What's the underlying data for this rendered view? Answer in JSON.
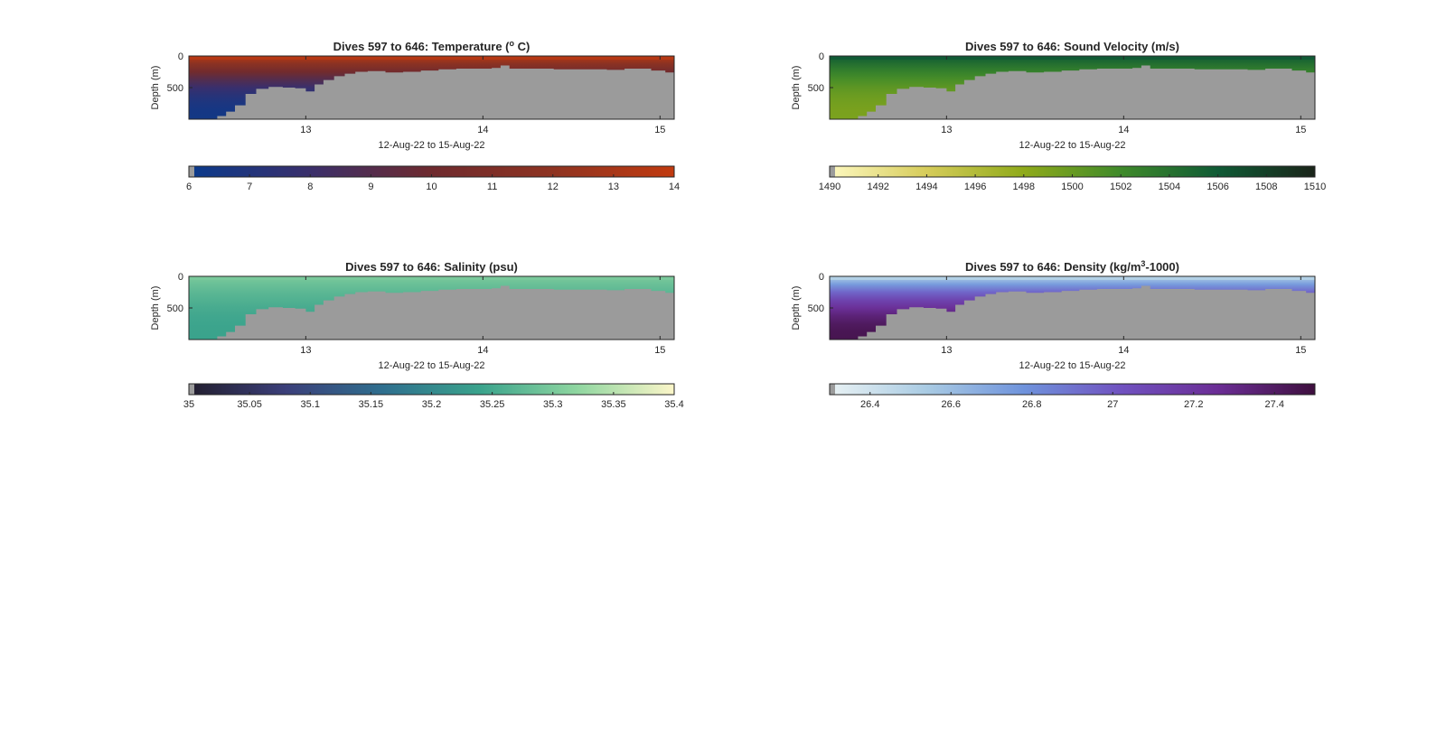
{
  "chart_data": [
    {
      "id": "temperature",
      "type": "heatmap",
      "title": "Dives 597 to 646: Temperature (",
      "title_sup": "o",
      "title_tail": " C)",
      "xlabel": "12-Aug-22 to 15-Aug-22",
      "ylabel": "Depth (m)",
      "xlim": [
        12.34,
        15.08
      ],
      "ylim": [
        0,
        1000
      ],
      "y_reversed": true,
      "xticks": [
        13,
        14,
        15
      ],
      "xtick_labels": [
        "13",
        "14",
        "15"
      ],
      "yticks": [
        0,
        500
      ],
      "ytick_labels": [
        "0",
        "500"
      ],
      "colormap": [
        "#0a3a8c",
        "#3a2f6b",
        "#6e2a2e",
        "#8e3321",
        "#c13a0f"
      ],
      "colorbar": {
        "ticks": [
          6,
          7,
          8,
          9,
          10,
          11,
          12,
          13,
          14
        ],
        "tick_labels": [
          "6",
          "7",
          "8",
          "9",
          "10",
          "11",
          "12",
          "13",
          "14"
        ],
        "range": [
          6,
          14
        ]
      },
      "surface_value": 13.6,
      "deep_value": 6.4
    },
    {
      "id": "sound-velocity",
      "type": "heatmap",
      "title": "Dives 597 to 646: Sound Velocity (m/s)",
      "title_sup": "",
      "title_tail": "",
      "xlabel": "12-Aug-22 to 15-Aug-22",
      "ylabel": "Depth (m)",
      "xlim": [
        12.34,
        15.08
      ],
      "ylim": [
        0,
        1000
      ],
      "y_reversed": true,
      "xticks": [
        13,
        14,
        15
      ],
      "xtick_labels": [
        "13",
        "14",
        "15"
      ],
      "yticks": [
        0,
        500
      ],
      "ytick_labels": [
        "0",
        "500"
      ],
      "colormap": [
        "#fdf8c0",
        "#d6cc5a",
        "#8faa1a",
        "#3f8a2a",
        "#0f5a35",
        "#1a2419"
      ],
      "colorbar": {
        "ticks": [
          1490,
          1492,
          1494,
          1496,
          1498,
          1500,
          1502,
          1504,
          1506,
          1508,
          1510
        ],
        "tick_labels": [
          "1490",
          "1492",
          "1494",
          "1496",
          "1498",
          "1500",
          "1502",
          "1504",
          "1506",
          "1508",
          "1510"
        ],
        "range": [
          1490,
          1510
        ]
      },
      "surface_value": 1506,
      "deep_value": 1499
    },
    {
      "id": "salinity",
      "type": "heatmap",
      "title": "Dives 597 to 646: Salinity (psu)",
      "title_sup": "",
      "title_tail": "",
      "xlabel": "12-Aug-22 to 15-Aug-22",
      "ylabel": "Depth (m)",
      "xlim": [
        12.34,
        15.08
      ],
      "ylim": [
        0,
        1000
      ],
      "y_reversed": true,
      "xticks": [
        13,
        14,
        15
      ],
      "xtick_labels": [
        "13",
        "14",
        "15"
      ],
      "yticks": [
        0,
        500
      ],
      "ytick_labels": [
        "0",
        "500"
      ],
      "colormap": [
        "#221e2e",
        "#3b3f7a",
        "#2f6f8e",
        "#3aa38c",
        "#8fd6a0",
        "#fcf6c9"
      ],
      "colorbar": {
        "ticks": [
          35,
          35.05,
          35.1,
          35.15,
          35.2,
          35.25,
          35.3,
          35.35,
          35.4
        ],
        "tick_labels": [
          "35",
          "35.05",
          "35.1",
          "35.15",
          "35.2",
          "35.25",
          "35.3",
          "35.35",
          "35.4"
        ],
        "range": [
          35,
          35.4
        ]
      },
      "surface_value": 35.3,
      "deep_value": 35.24
    },
    {
      "id": "density",
      "type": "heatmap",
      "title": "Dives 597 to 646: Density (kg/m",
      "title_sup": "3",
      "title_tail": "-1000)",
      "xlabel": "12-Aug-22 to 15-Aug-22",
      "ylabel": "Depth (m)",
      "xlim": [
        12.34,
        15.08
      ],
      "ylim": [
        0,
        1000
      ],
      "y_reversed": true,
      "xticks": [
        13,
        14,
        15
      ],
      "xtick_labels": [
        "13",
        "14",
        "15"
      ],
      "yticks": [
        0,
        500
      ],
      "ytick_labels": [
        "0",
        "500"
      ],
      "colormap": [
        "#e9f2f4",
        "#a9cbe3",
        "#6f93dc",
        "#7052c0",
        "#6b2d95",
        "#3e0f3e"
      ],
      "colorbar": {
        "ticks": [
          26.4,
          26.6,
          26.8,
          27,
          27.2,
          27.4
        ],
        "tick_labels": [
          "26.4",
          "26.6",
          "26.8",
          "27",
          "27.2",
          "27.4"
        ],
        "range": [
          26.3,
          27.5
        ]
      },
      "surface_value": 26.5,
      "deep_value": 27.45
    }
  ],
  "seafloor": {
    "x": [
      12.34,
      12.5,
      12.55,
      12.6,
      12.66,
      12.72,
      12.79,
      12.87,
      12.94,
      13.0,
      13.05,
      13.1,
      13.16,
      13.22,
      13.28,
      13.35,
      13.45,
      13.55,
      13.65,
      13.75,
      13.85,
      13.95,
      14.05,
      14.1,
      14.15,
      14.25,
      14.4,
      14.55,
      14.65,
      14.7,
      14.8,
      14.9,
      14.95,
      15.03,
      15.08
    ],
    "depth": [
      1000,
      950,
      880,
      780,
      600,
      520,
      490,
      500,
      510,
      560,
      450,
      380,
      320,
      280,
      250,
      240,
      260,
      250,
      230,
      210,
      200,
      200,
      190,
      150,
      200,
      200,
      210,
      210,
      210,
      220,
      200,
      200,
      230,
      260,
      260
    ]
  },
  "seafloor_color": "#9b9b9b"
}
